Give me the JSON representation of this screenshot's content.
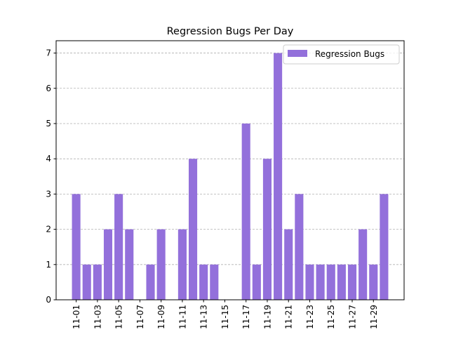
{
  "chart_data": {
    "type": "bar",
    "title": "Regression Bugs Per Day",
    "xlabel": "",
    "ylabel": "",
    "categories": [
      "11-01",
      "11-02",
      "11-03",
      "11-04",
      "11-05",
      "11-06",
      "11-07",
      "11-08",
      "11-09",
      "11-10",
      "11-11",
      "11-12",
      "11-13",
      "11-14",
      "11-15",
      "11-16",
      "11-17",
      "11-18",
      "11-19",
      "11-20",
      "11-21",
      "11-22",
      "11-23",
      "11-24",
      "11-25",
      "11-26",
      "11-27",
      "11-28",
      "11-29",
      "11-30"
    ],
    "series": [
      {
        "name": "Regression Bugs",
        "color": "#9370db",
        "values": [
          3,
          1,
          1,
          2,
          3,
          2,
          0,
          1,
          2,
          0,
          2,
          4,
          1,
          1,
          0,
          0,
          5,
          1,
          4,
          7,
          2,
          3,
          1,
          1,
          1,
          1,
          1,
          2,
          1,
          3
        ]
      }
    ],
    "xtick_labels": [
      "11-01",
      "11-03",
      "11-05",
      "11-07",
      "11-09",
      "11-11",
      "11-13",
      "11-15",
      "11-17",
      "11-19",
      "11-21",
      "11-23",
      "11-25",
      "11-27",
      "11-29"
    ],
    "yticks": [
      0,
      1,
      2,
      3,
      4,
      5,
      6,
      7
    ],
    "ylim": [
      0,
      7.35
    ],
    "grid": "y-dashed",
    "legend": {
      "placement": "top-right",
      "entries": [
        "Regression Bugs"
      ]
    }
  }
}
